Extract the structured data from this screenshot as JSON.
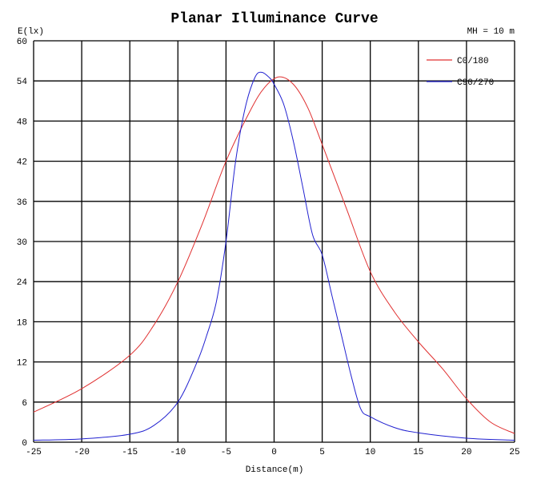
{
  "chart_data": {
    "type": "line",
    "title": "Planar Illuminance Curve",
    "xlabel": "Distance(m)",
    "ylabel": "E(lx)",
    "annotation": "MH = 10 m",
    "xlim": [
      -25,
      25
    ],
    "ylim": [
      0,
      60
    ],
    "xticks": [
      -25,
      -20,
      -15,
      -10,
      -5,
      0,
      5,
      10,
      15,
      20,
      25
    ],
    "yticks": [
      0,
      6,
      12,
      18,
      24,
      30,
      36,
      42,
      48,
      54,
      60
    ],
    "grid": true,
    "legend_position": "top-right",
    "series": [
      {
        "name": "C0/180",
        "color": "#e03030",
        "x": [
          -25,
          -20,
          -15,
          -12.5,
          -10,
          -7.5,
          -5,
          -2.5,
          -1,
          0.5,
          2,
          3.5,
          5,
          7.5,
          10,
          12.5,
          15,
          17.5,
          20,
          22.5,
          25
        ],
        "y": [
          4.5,
          8,
          13,
          17.5,
          24,
          32.5,
          42,
          49.5,
          53,
          54.6,
          53.5,
          50,
          44.5,
          35,
          25.5,
          19.5,
          15,
          11,
          6.5,
          3,
          1.3
        ]
      },
      {
        "name": "C90/270",
        "color": "#2020d0",
        "x": [
          -25,
          -20,
          -15,
          -12.5,
          -10,
          -8,
          -7,
          -6,
          -5,
          -4,
          -3,
          -2,
          -1.3,
          -0.5,
          0,
          1,
          2,
          3,
          4,
          5,
          6,
          7,
          8,
          9,
          10,
          12.5,
          15,
          20,
          25
        ],
        "y": [
          0.3,
          0.5,
          1.2,
          2.5,
          6,
          12,
          16,
          21,
          30,
          42,
          50,
          54.5,
          55.3,
          54.5,
          53.5,
          50.5,
          45,
          38,
          31,
          28,
          22,
          16,
          10,
          5,
          3.8,
          2.2,
          1.4,
          0.6,
          0.3
        ]
      }
    ]
  }
}
